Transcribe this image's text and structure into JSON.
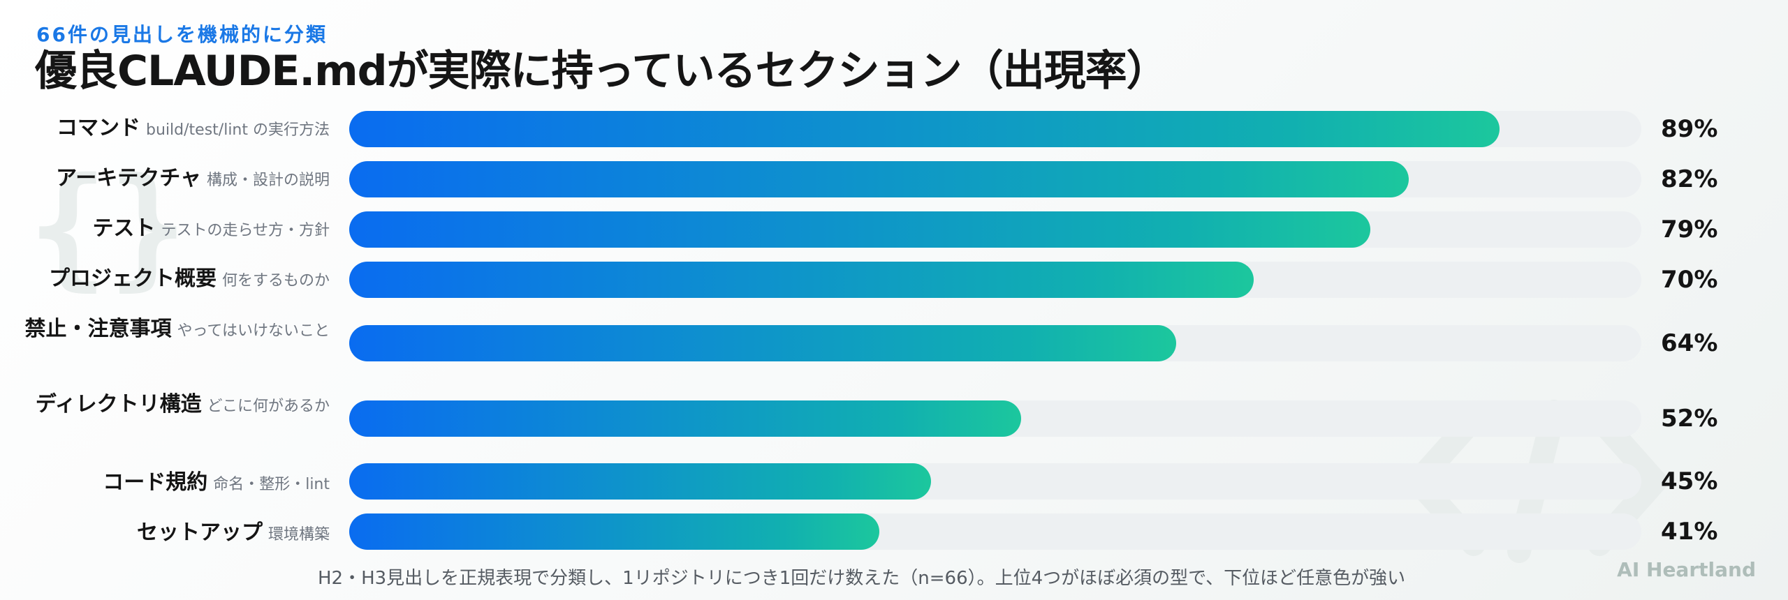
{
  "kicker": "66件の見出しを機械的に分類",
  "title": "優良CLAUDE.mdが実際に持っているセクション（出現率）",
  "footnote": "H2・H3見出しを正規表現で分類し、1リポジトリにつき1回だけ数えた（n=66）。上位4つがほぼ必須の型で、下位ほど任意色が強い",
  "brand": "AI Heartland",
  "colors": {
    "bar_start": "#0a6cf0",
    "bar_end": "#1cc79d",
    "track": "#edf0f2",
    "kicker": "#1a78e6"
  },
  "chart_data": {
    "type": "bar",
    "orientation": "horizontal",
    "title": "優良CLAUDE.mdが実際に持っているセクション（出現率）",
    "xlim": [
      0,
      100
    ],
    "unit": "%",
    "grid": false,
    "categories": [
      {
        "name": "コマンド",
        "desc": "build/test/lint の実行方法",
        "value": 89,
        "value_label": "89%"
      },
      {
        "name": "アーキテクチャ",
        "desc": "構成・設計の説明",
        "value": 82,
        "value_label": "82%"
      },
      {
        "name": "テスト",
        "desc": "テストの走らせ方・方針",
        "value": 79,
        "value_label": "79%"
      },
      {
        "name": "プロジェクト概要",
        "desc": "何をするものか",
        "value": 70,
        "value_label": "70%"
      },
      {
        "name": "禁止・注意事項",
        "desc": "やってはいけないこと",
        "value": 64,
        "value_label": "64%"
      },
      {
        "name": "ディレクトリ構造",
        "desc": "どこに何があるか",
        "value": 52,
        "value_label": "52%"
      },
      {
        "name": "コード規約",
        "desc": "命名・整形・lint",
        "value": 45,
        "value_label": "45%"
      },
      {
        "name": "セットアップ",
        "desc": "環境構築",
        "value": 41,
        "value_label": "41%"
      }
    ]
  }
}
